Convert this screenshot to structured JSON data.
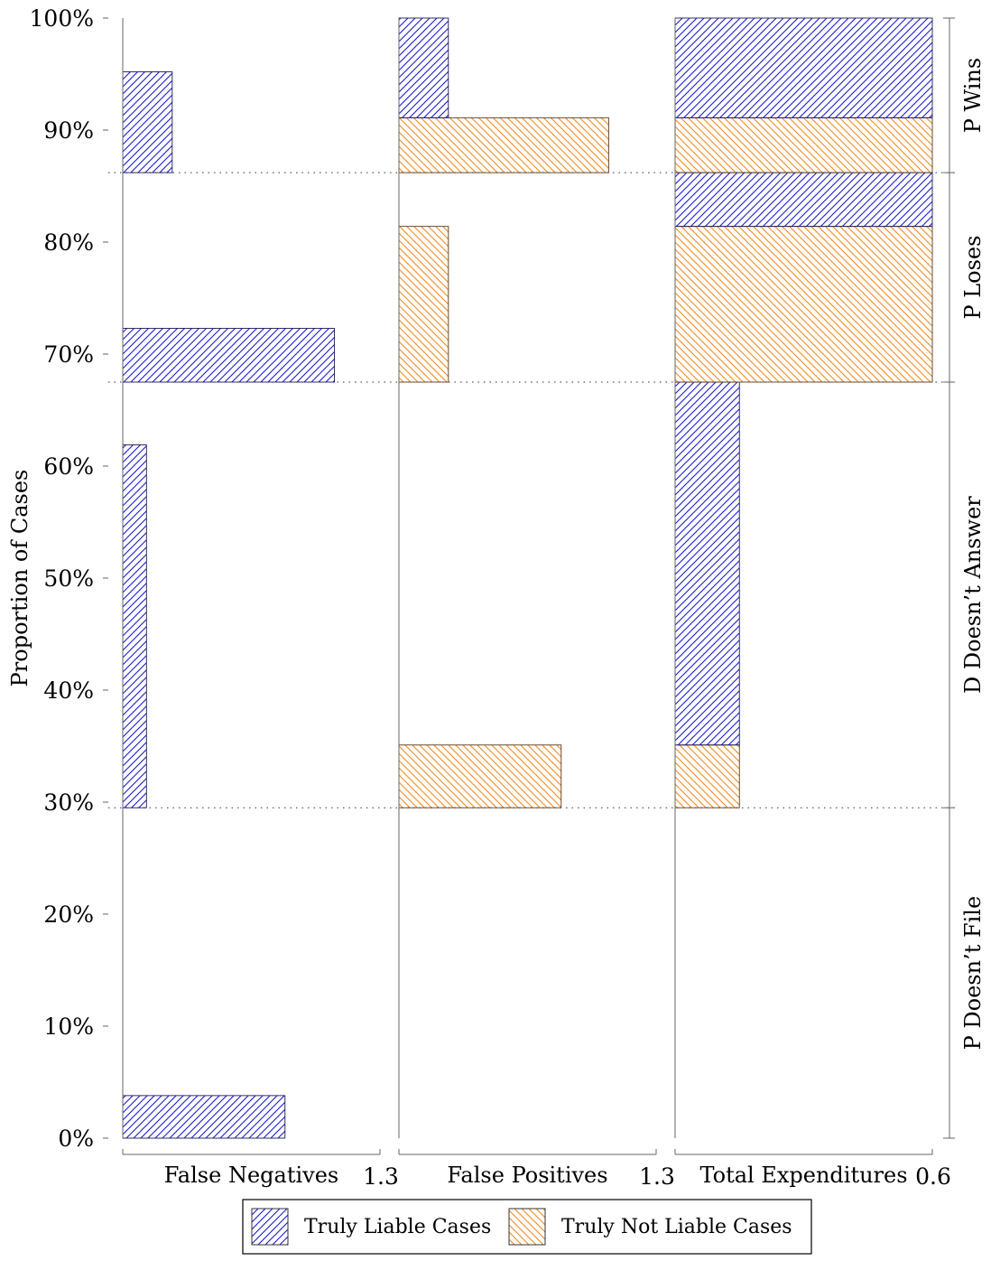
{
  "chart_data": {
    "type": "bar",
    "orientation": "horizontal-spans",
    "y_axis": {
      "label": "Proportion of Cases",
      "range": [
        0,
        100
      ],
      "ticks": [
        "0%",
        "10%",
        "20%",
        "30%",
        "40%",
        "50%",
        "60%",
        "70%",
        "80%",
        "90%",
        "100%"
      ]
    },
    "regions": [
      {
        "label": "P Doesn’t File",
        "from": 0,
        "to": 29.5
      },
      {
        "label": "D Doesn’t Answer",
        "from": 29.5,
        "to": 67.5
      },
      {
        "label": "P Loses",
        "from": 67.5,
        "to": 86.2
      },
      {
        "label": "P Wins",
        "from": 86.2,
        "to": 100
      }
    ],
    "panels": [
      {
        "label": "False Negatives",
        "x_max_label": "1.3",
        "x_max": 1.3,
        "bars": [
          {
            "series": "liable",
            "y0": 0,
            "y1": 3.8,
            "x": 0.82
          },
          {
            "series": "liable",
            "y0": 29.5,
            "y1": 61.9,
            "x": 0.12
          },
          {
            "series": "liable",
            "y0": 67.5,
            "y1": 72.3,
            "x": 1.07
          },
          {
            "series": "liable",
            "y0": 86.2,
            "y1": 95.2,
            "x": 0.25
          }
        ]
      },
      {
        "label": "False Positives",
        "x_max_label": "1.3",
        "x_max": 1.3,
        "bars": [
          {
            "series": "not_liable",
            "y0": 29.5,
            "y1": 35.1,
            "x": 0.82
          },
          {
            "series": "not_liable",
            "y0": 67.5,
            "y1": 81.4,
            "x": 0.25
          },
          {
            "series": "not_liable",
            "y0": 86.2,
            "y1": 91.1,
            "x": 1.06
          },
          {
            "series": "liable",
            "y0": 91.1,
            "y1": 100,
            "x": 0.25
          }
        ]
      },
      {
        "label": "Total Expenditures",
        "x_max_label": "0.6",
        "x_max": 0.6,
        "bars": [
          {
            "series": "not_liable",
            "y0": 29.5,
            "y1": 35.1,
            "x": 0.15
          },
          {
            "series": "liable",
            "y0": 35.1,
            "y1": 67.5,
            "x": 0.15
          },
          {
            "series": "not_liable",
            "y0": 67.5,
            "y1": 81.4,
            "x": 0.6
          },
          {
            "series": "liable",
            "y0": 81.4,
            "y1": 86.2,
            "x": 0.6
          },
          {
            "series": "not_liable",
            "y0": 86.2,
            "y1": 91.1,
            "x": 0.6
          },
          {
            "series": "liable",
            "y0": 91.1,
            "y1": 100,
            "x": 0.6
          }
        ]
      }
    ],
    "series": [
      {
        "key": "liable",
        "name": "Truly Liable Cases",
        "color": "#1a1ad6",
        "pattern": "north-east-lines"
      },
      {
        "key": "not_liable",
        "name": "Truly Not Liable Cases",
        "color": "#f08a1c",
        "pattern": "north-west-lines"
      }
    ],
    "legend_position": "bottom",
    "grid": false
  }
}
